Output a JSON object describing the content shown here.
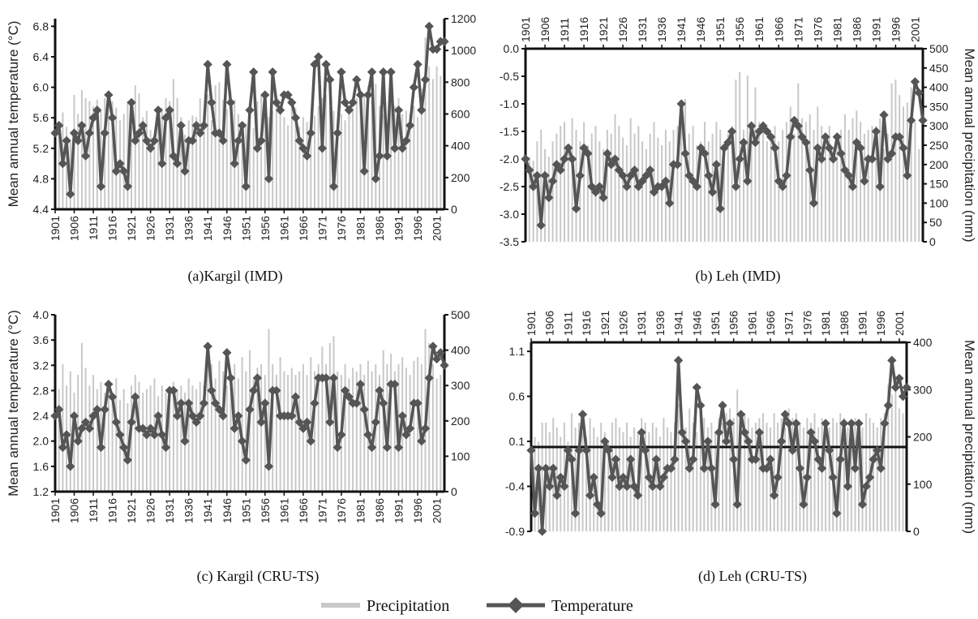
{
  "legend": {
    "precipitation": "Precipitation",
    "temperature": "Temperature"
  },
  "colors": {
    "precipitation": "#c8c8c8",
    "temperature": "#555555",
    "marker": "#555555"
  },
  "chart_data": [
    {
      "id": "a",
      "type": "line",
      "caption": "(a)Kargil (IMD)",
      "ylabel_left": "Mean annual temperature (°C)",
      "ylabel_right": "",
      "year_ticks": [
        "1901",
        "1906",
        "1911",
        "1916",
        "1921",
        "1926",
        "1931",
        "1936",
        "1941",
        "1946",
        "1951",
        "1956",
        "1961",
        "1966",
        "1971",
        "1976",
        "1981",
        "1986",
        "1991",
        "1996",
        "2001"
      ],
      "left_ticks": [
        "4.4",
        "4.8",
        "5.2",
        "5.6",
        "6.0",
        "6.4",
        "6.8"
      ],
      "right_ticks": [
        "0",
        "200",
        "400",
        "600",
        "800",
        "1000",
        "1200"
      ],
      "ylim_left": [
        4.4,
        6.9
      ],
      "ylim_right": [
        0,
        1200
      ],
      "year_axis_top": false,
      "x_range": [
        1901,
        2003
      ],
      "series": [
        {
          "name": "Precipitation",
          "x_start": 1901,
          "values": [
            650,
            540,
            610,
            520,
            430,
            720,
            600,
            750,
            700,
            680,
            650,
            690,
            620,
            700,
            720,
            680,
            640,
            560,
            600,
            680,
            520,
            780,
            730,
            580,
            620,
            500,
            450,
            600,
            640,
            700,
            680,
            820,
            700,
            580,
            470,
            560,
            590,
            580,
            700,
            620,
            720,
            560,
            780,
            800,
            690,
            630,
            740,
            690,
            600,
            520,
            540,
            630,
            510,
            680,
            720,
            640,
            580,
            620,
            700,
            650,
            580,
            530,
            660,
            640,
            520,
            580,
            550,
            480,
            590,
            650,
            700,
            720,
            680,
            620,
            540,
            600,
            560,
            620,
            640,
            700,
            650,
            720,
            780,
            680,
            790,
            650,
            600,
            540,
            720,
            650,
            700,
            600,
            620,
            600,
            650,
            580,
            760,
            1080,
            900,
            820,
            900,
            840,
            850
          ]
        },
        {
          "name": "Temperature",
          "x_start": 1901,
          "values": [
            5.4,
            5.5,
            5.0,
            5.3,
            4.6,
            5.4,
            5.3,
            5.5,
            5.1,
            5.4,
            5.6,
            5.7,
            4.7,
            5.4,
            5.9,
            5.6,
            4.9,
            5.0,
            4.9,
            4.7,
            5.8,
            5.3,
            5.4,
            5.5,
            5.3,
            5.2,
            5.3,
            5.7,
            5.0,
            5.6,
            5.7,
            5.1,
            5.0,
            5.5,
            4.9,
            5.3,
            5.3,
            5.5,
            5.4,
            5.5,
            6.3,
            5.8,
            5.4,
            5.4,
            5.3,
            6.3,
            5.8,
            5.0,
            5.3,
            5.5,
            4.7,
            5.7,
            6.2,
            5.2,
            5.3,
            5.9,
            4.8,
            6.2,
            5.8,
            5.7,
            5.9,
            5.9,
            5.8,
            5.6,
            5.3,
            5.2,
            5.1,
            5.4,
            6.3,
            6.4,
            5.2,
            6.3,
            6.1,
            4.7,
            5.4,
            6.2,
            5.8,
            5.7,
            5.8,
            6.1,
            5.9,
            4.9,
            5.9,
            6.2,
            4.8,
            5.1,
            6.2,
            5.1,
            6.2,
            5.2,
            5.7,
            5.2,
            5.3,
            5.5,
            6.0,
            6.3,
            5.7,
            6.1,
            6.8,
            6.5,
            6.5,
            6.6,
            6.6
          ]
        }
      ]
    },
    {
      "id": "b",
      "type": "line",
      "caption": "(b)  Leh (IMD)",
      "ylabel_left": "",
      "ylabel_right": "Mean annual precipitation (mm)",
      "year_ticks": [
        "1901",
        "1906",
        "1911",
        "1916",
        "1921",
        "1926",
        "1931",
        "1936",
        "1941",
        "1946",
        "1951",
        "1956",
        "1961",
        "1966",
        "1971",
        "1976",
        "1981",
        "1986",
        "1991",
        "1996",
        "2001"
      ],
      "left_ticks": [
        "-3.5",
        "-3.0",
        "-2.5",
        "-2.0",
        "-1.5",
        "-1.0",
        "-0.5",
        "0.0"
      ],
      "right_ticks": [
        "0",
        "50",
        "100",
        "150",
        "200",
        "250",
        "300",
        "350",
        "400",
        "450",
        "500"
      ],
      "ylim_left": [
        -3.5,
        0.0
      ],
      "ylim_right": [
        0,
        500
      ],
      "year_axis_top": true,
      "x_range": [
        1901,
        2003
      ],
      "series": [
        {
          "name": "Precipitation",
          "x_start": 1901,
          "values": [
            180,
            220,
            210,
            260,
            290,
            240,
            220,
            260,
            280,
            300,
            310,
            240,
            320,
            290,
            260,
            310,
            250,
            280,
            300,
            260,
            240,
            290,
            280,
            330,
            300,
            270,
            250,
            320,
            280,
            300,
            260,
            240,
            280,
            310,
            270,
            250,
            290,
            260,
            290,
            300,
            330,
            370,
            280,
            300,
            250,
            260,
            310,
            260,
            280,
            310,
            290,
            250,
            280,
            300,
            420,
            440,
            290,
            430,
            300,
            400,
            310,
            290,
            260,
            280,
            300,
            260,
            290,
            310,
            350,
            280,
            410,
            320,
            310,
            330,
            290,
            350,
            300,
            260,
            300,
            240,
            270,
            290,
            330,
            290,
            320,
            340,
            310,
            280,
            290,
            300,
            300,
            320,
            240,
            280,
            410,
            420,
            380,
            350,
            360,
            400,
            310,
            240,
            230
          ]
        },
        {
          "name": "Temperature",
          "x_start": 1901,
          "values": [
            -2.0,
            -2.2,
            -2.5,
            -2.3,
            -3.2,
            -2.3,
            -2.7,
            -2.4,
            -2.1,
            -2.2,
            -2.0,
            -1.8,
            -2.0,
            -2.9,
            -2.3,
            -1.8,
            -1.9,
            -2.5,
            -2.6,
            -2.5,
            -2.7,
            -1.9,
            -2.1,
            -2.0,
            -2.2,
            -2.3,
            -2.5,
            -2.3,
            -2.2,
            -2.5,
            -2.4,
            -2.3,
            -2.2,
            -2.6,
            -2.5,
            -2.5,
            -2.4,
            -2.8,
            -2.1,
            -2.1,
            -1.0,
            -1.9,
            -2.3,
            -2.4,
            -2.5,
            -1.8,
            -1.9,
            -2.3,
            -2.6,
            -2.1,
            -2.9,
            -1.8,
            -1.7,
            -1.5,
            -2.5,
            -2.0,
            -1.7,
            -2.4,
            -1.4,
            -1.7,
            -1.5,
            -1.4,
            -1.5,
            -1.6,
            -1.8,
            -2.4,
            -2.5,
            -2.3,
            -1.6,
            -1.3,
            -1.4,
            -1.6,
            -1.7,
            -2.2,
            -2.8,
            -1.8,
            -2.0,
            -1.6,
            -1.8,
            -2.0,
            -1.6,
            -1.9,
            -2.2,
            -2.3,
            -2.5,
            -1.7,
            -1.8,
            -2.4,
            -2.0,
            -2.0,
            -1.5,
            -2.5,
            -1.2,
            -2.0,
            -1.9,
            -1.6,
            -1.6,
            -1.8,
            -2.3,
            -1.3,
            -0.6,
            -0.8,
            -1.3
          ]
        }
      ]
    },
    {
      "id": "c",
      "type": "line",
      "caption": "(c)  Kargil (CRU-TS)",
      "ylabel_left": "Mean annual temperature (°C)",
      "ylabel_right": "",
      "year_ticks": [
        "1901",
        "1906",
        "1911",
        "1916",
        "1921",
        "1926",
        "1931",
        "1936",
        "1941",
        "1946",
        "1951",
        "1956",
        "1961",
        "1966",
        "1971",
        "1976",
        "1981",
        "1986",
        "1991",
        "1996",
        "2001"
      ],
      "left_ticks": [
        "1.2",
        "1.6",
        "2.0",
        "2.4",
        "2.8",
        "3.2",
        "3.6",
        "4.0"
      ],
      "right_ticks": [
        "0",
        "100",
        "200",
        "300",
        "400",
        "500"
      ],
      "ylim_left": [
        1.2,
        4.0
      ],
      "ylim_right": [
        0,
        500
      ],
      "year_axis_top": false,
      "x_range": [
        1901,
        2003
      ],
      "series": [
        {
          "name": "Precipitation",
          "x_start": 1901,
          "values": [
            320,
            290,
            360,
            300,
            340,
            280,
            330,
            420,
            350,
            300,
            330,
            290,
            310,
            280,
            300,
            270,
            320,
            260,
            290,
            250,
            300,
            330,
            310,
            280,
            290,
            300,
            320,
            270,
            300,
            280,
            290,
            310,
            290,
            300,
            280,
            320,
            300,
            290,
            310,
            300,
            380,
            360,
            320,
            370,
            340,
            300,
            330,
            360,
            320,
            380,
            340,
            400,
            320,
            350,
            360,
            330,
            460,
            360,
            330,
            380,
            340,
            330,
            350,
            330,
            340,
            360,
            330,
            380,
            340,
            360,
            410,
            360,
            420,
            440,
            340,
            330,
            360,
            320,
            350,
            340,
            360,
            330,
            370,
            340,
            360,
            330,
            400,
            360,
            390,
            340,
            360,
            380,
            350,
            330,
            370,
            380,
            360,
            460,
            420,
            360,
            320,
            330,
            300
          ]
        },
        {
          "name": "Temperature",
          "x_start": 1901,
          "values": [
            2.4,
            2.5,
            1.9,
            2.1,
            1.6,
            2.4,
            2.0,
            2.2,
            2.3,
            2.2,
            2.4,
            2.5,
            1.9,
            2.5,
            2.9,
            2.7,
            2.3,
            2.1,
            1.9,
            1.7,
            2.3,
            2.7,
            2.2,
            2.2,
            2.1,
            2.2,
            2.1,
            2.4,
            2.1,
            1.9,
            2.8,
            2.8,
            2.4,
            2.6,
            2.0,
            2.6,
            2.4,
            2.3,
            2.4,
            2.6,
            3.5,
            2.8,
            2.6,
            2.5,
            2.4,
            3.4,
            3.0,
            2.2,
            2.4,
            2.0,
            1.7,
            2.5,
            2.8,
            3.0,
            2.3,
            2.6,
            1.6,
            2.8,
            2.8,
            2.4,
            2.4,
            2.4,
            2.4,
            2.7,
            2.3,
            2.2,
            2.3,
            2.0,
            2.6,
            3.0,
            3.0,
            3.0,
            2.3,
            3.0,
            1.9,
            2.1,
            2.8,
            2.7,
            2.6,
            2.6,
            2.9,
            2.5,
            2.1,
            1.9,
            2.3,
            2.8,
            2.6,
            1.9,
            2.9,
            2.9,
            1.9,
            2.4,
            2.1,
            2.2,
            2.6,
            2.6,
            2.0,
            2.2,
            3.0,
            3.5,
            3.3,
            3.4,
            3.2
          ]
        }
      ]
    },
    {
      "id": "d",
      "type": "line",
      "caption": "(d)  Leh (CRU-TS)",
      "ylabel_left": "",
      "ylabel_right": "Mean annual precipitation (mm)",
      "year_ticks": [
        "1901",
        "1906",
        "1911",
        "1916",
        "1921",
        "1926",
        "1931",
        "1936",
        "1941",
        "1946",
        "1951",
        "1956",
        "1961",
        "1966",
        "1971",
        "1976",
        "1981",
        "1986",
        "1991",
        "1996",
        "2001"
      ],
      "left_ticks": [
        "-0.9",
        "-0.4",
        "0.1",
        "0.6",
        "1.1"
      ],
      "right_ticks": [
        "0",
        "100",
        "200",
        "300",
        "400"
      ],
      "ylim_left": [
        -0.9,
        1.2
      ],
      "ylim_right": [
        0,
        400
      ],
      "year_axis_top": true,
      "x_range": [
        1901,
        2003
      ],
      "series": [
        {
          "name": "Precipitation",
          "x_start": 1901,
          "values": [
            180,
            200,
            190,
            230,
            230,
            210,
            240,
            220,
            200,
            230,
            190,
            250,
            220,
            230,
            210,
            200,
            240,
            220,
            200,
            230,
            210,
            190,
            230,
            240,
            220,
            210,
            230,
            200,
            220,
            210,
            240,
            230,
            210,
            230,
            220,
            200,
            240,
            220,
            210,
            230,
            270,
            250,
            220,
            260,
            230,
            210,
            250,
            240,
            220,
            230,
            210,
            240,
            230,
            250,
            260,
            240,
            300,
            230,
            250,
            240,
            220,
            230,
            240,
            250,
            230,
            220,
            250,
            230,
            240,
            220,
            260,
            240,
            250,
            230,
            220,
            240,
            230,
            250,
            220,
            240,
            230,
            220,
            240,
            230,
            250,
            240,
            220,
            230,
            240,
            230,
            220,
            250,
            240,
            230,
            220,
            240,
            250,
            310,
            290,
            330,
            260,
            250,
            240
          ]
        },
        {
          "name": "Temperature",
          "x_start": 1901,
          "values": [
            0.0,
            -0.7,
            -0.2,
            -0.9,
            -0.2,
            -0.4,
            -0.2,
            -0.5,
            -0.3,
            -0.4,
            0.0,
            -0.1,
            -0.7,
            0.0,
            0.4,
            0.0,
            -0.5,
            -0.3,
            -0.6,
            -0.7,
            0.1,
            0.0,
            -0.3,
            -0.1,
            -0.4,
            -0.3,
            -0.4,
            -0.1,
            -0.4,
            -0.5,
            0.2,
            0.0,
            -0.3,
            -0.4,
            -0.1,
            -0.4,
            -0.3,
            -0.2,
            -0.2,
            -0.1,
            1.0,
            0.2,
            0.1,
            -0.2,
            -0.1,
            0.7,
            0.5,
            -0.2,
            0.1,
            -0.2,
            -0.6,
            0.2,
            0.5,
            0.1,
            0.3,
            -0.1,
            -0.6,
            0.4,
            0.2,
            0.1,
            -0.1,
            -0.1,
            0.2,
            -0.2,
            -0.2,
            -0.1,
            -0.5,
            -0.3,
            0.1,
            0.4,
            0.3,
            0.0,
            0.3,
            -0.2,
            -0.6,
            -0.3,
            0.2,
            0.1,
            -0.1,
            -0.2,
            0.3,
            0.0,
            -0.3,
            -0.7,
            -0.1,
            0.3,
            -0.4,
            0.3,
            -0.2,
            0.3,
            -0.6,
            -0.4,
            -0.3,
            -0.1,
            0.0,
            -0.2,
            0.3,
            0.5,
            1.0,
            0.7,
            0.8,
            0.6,
            0.7
          ]
        }
      ]
    }
  ]
}
